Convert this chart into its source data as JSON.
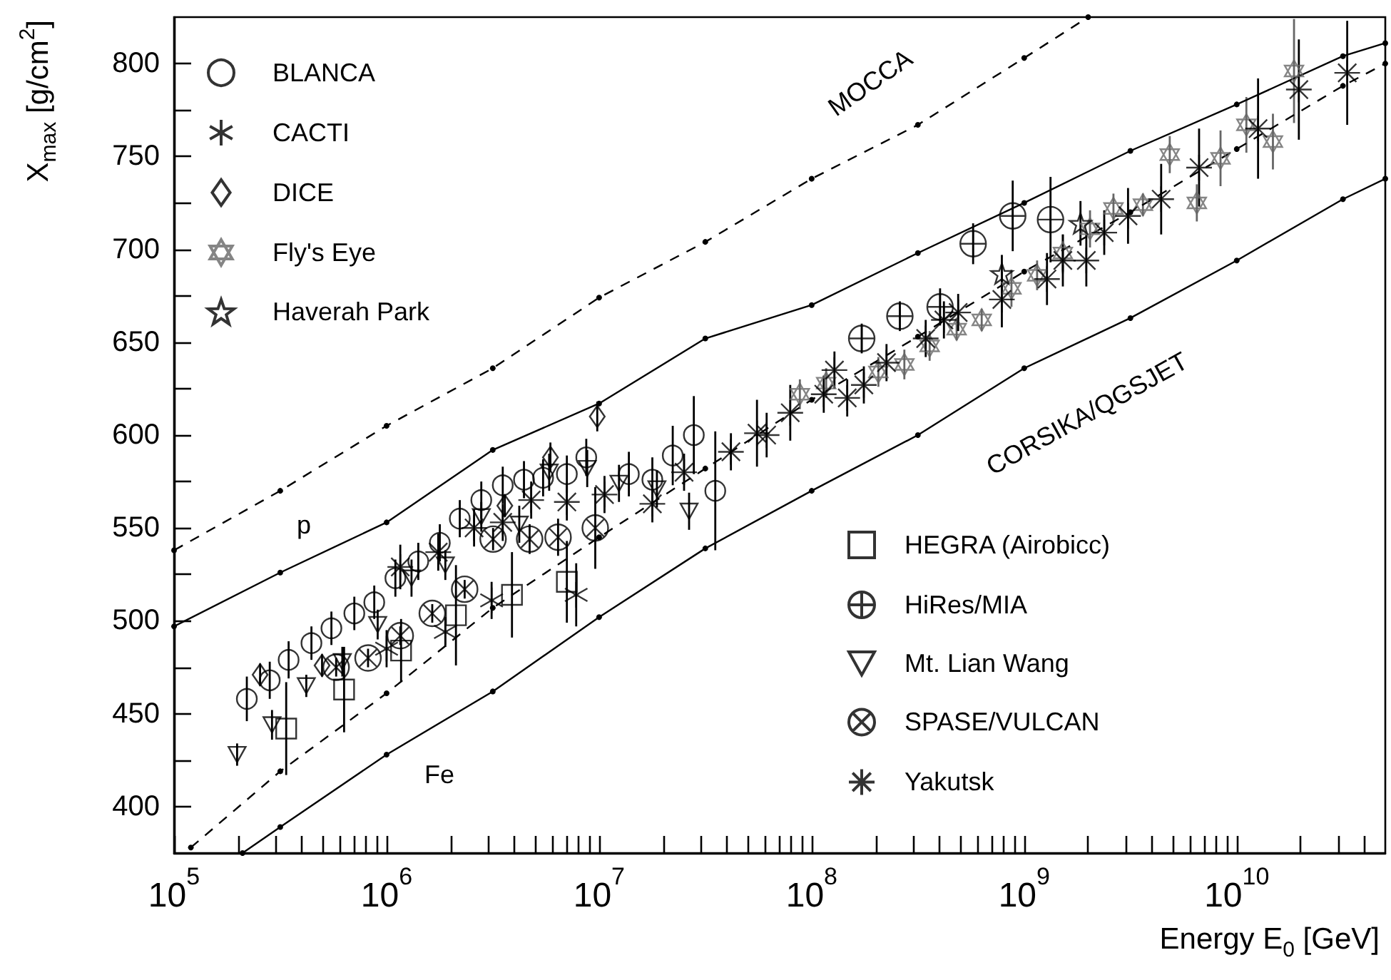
{
  "chart_data": {
    "type": "scatter",
    "xlabel": "Energy E$_{0}$ [GeV]",
    "ylabel": "X$_{max}$ [g/cm$^{2}$]",
    "log": "x",
    "grid": false,
    "legend": "top left",
    "xlim": [
      100000.0,
      50000000000.0
    ],
    "ylim": [
      375,
      825
    ],
    "xticks": [
      {
        "value": 100000.0,
        "label": "10$^{5}$"
      },
      {
        "value": 200000.0,
        "label": null
      },
      {
        "value": 300000.0,
        "label": null
      },
      {
        "value": 400000.0,
        "label": null
      },
      {
        "value": 500000.0,
        "label": null
      },
      {
        "value": 600000.0,
        "label": null
      },
      {
        "value": 700000.0,
        "label": null
      },
      {
        "value": 800000.0,
        "label": null
      },
      {
        "value": 900000.0,
        "label": null
      },
      {
        "value": 1000000.0,
        "label": "10$^{6}$"
      },
      {
        "value": 2000000.0,
        "label": null
      },
      {
        "value": 3000000.0,
        "label": null
      },
      {
        "value": 4000000.0,
        "label": null
      },
      {
        "value": 5000000.0,
        "label": null
      },
      {
        "value": 6000000.0,
        "label": null
      },
      {
        "value": 7000000.0,
        "label": null
      },
      {
        "value": 8000000.0,
        "label": null
      },
      {
        "value": 9000000.0,
        "label": null
      },
      {
        "value": 10000000.0,
        "label": "10$^{7}$"
      },
      {
        "value": 20000000.0,
        "label": null
      },
      {
        "value": 30000000.0,
        "label": null
      },
      {
        "value": 40000000.0,
        "label": null
      },
      {
        "value": 50000000.0,
        "label": null
      },
      {
        "value": 60000000.0,
        "label": null
      },
      {
        "value": 70000000.0,
        "label": null
      },
      {
        "value": 80000000.0,
        "label": null
      },
      {
        "value": 90000000.0,
        "label": null
      },
      {
        "value": 100000000.0,
        "label": "10$^{8}$"
      },
      {
        "value": 200000000.0,
        "label": null
      },
      {
        "value": 300000000.0,
        "label": null
      },
      {
        "value": 400000000.0,
        "label": null
      },
      {
        "value": 500000000.0,
        "label": null
      },
      {
        "value": 600000000.0,
        "label": null
      },
      {
        "value": 700000000.0,
        "label": null
      },
      {
        "value": 800000000.0,
        "label": null
      },
      {
        "value": 900000000.0,
        "label": null
      },
      {
        "value": 1000000000.0,
        "label": "10$^{9}$"
      },
      {
        "value": 2000000000.0,
        "label": null
      },
      {
        "value": 3000000000.0,
        "label": null
      },
      {
        "value": 4000000000.0,
        "label": null
      },
      {
        "value": 5000000000.0,
        "label": null
      },
      {
        "value": 6000000000.0,
        "label": null
      },
      {
        "value": 7000000000.0,
        "label": null
      },
      {
        "value": 8000000000.0,
        "label": null
      },
      {
        "value": 9000000000.0,
        "label": null
      },
      {
        "value": 10000000000.0,
        "label": "10$^{10}$"
      },
      {
        "value": 20000000000.0,
        "label": null
      },
      {
        "value": 30000000000.0,
        "label": null
      },
      {
        "value": 40000000000.0,
        "label": null
      }
    ],
    "yticks": [
      400,
      {
        "value": 425,
        "label": null
      },
      450,
      {
        "value": 475,
        "label": null
      },
      500,
      {
        "value": 525,
        "label": null
      },
      550,
      {
        "value": 575,
        "label": null
      },
      600,
      {
        "value": 625,
        "label": null
      },
      650,
      {
        "value": 675,
        "label": null
      },
      700,
      {
        "value": 725,
        "label": null
      },
      750,
      {
        "value": 775,
        "label": null
      },
      800
    ],
    "annotations": [
      "MOCCA",
      "CORSIKA/QGSJET",
      "p",
      "Fe"
    ],
    "series": [
      {
        "name": "BLANCA",
        "marker": "circle",
        "color": "#000000",
        "x": [
          220000.0,
          282000.0,
          346000.0,
          443000.0,
          550000.0,
          705000.0,
          875000.0,
          1100000.0,
          1410000.0,
          1780000.0,
          2210000.0,
          2790000.0,
          3520000.0,
          4430000.0,
          5450000.0,
          7050000.0,
          8700000.0,
          13800000.0,
          17800000.0,
          22200000.0,
          27900000.0,
          35200000.0
        ],
        "values": [
          458,
          468,
          479,
          488,
          496,
          504,
          510,
          523,
          532,
          542,
          555,
          565,
          573,
          576,
          577,
          579,
          588,
          579,
          576,
          589,
          600,
          570
        ],
        "errors": [
          12,
          10,
          10,
          9,
          9,
          9,
          9,
          10,
          10,
          10,
          10,
          10,
          10,
          10,
          10,
          10,
          10,
          12,
          12,
          16,
          21,
          32
        ]
      },
      {
        "name": "CACTI",
        "marker": "cross",
        "color": "#000000",
        "x": [
          1000000.0,
          1890000.0,
          3120000.0,
          7800000.0
        ],
        "values": [
          485,
          494,
          511,
          514
        ],
        "errors": [
          10,
          8,
          10,
          17
        ]
      },
      {
        "name": "DICE",
        "marker": "diamond",
        "color": "#000000",
        "x": [
          254000.0,
          497000.0,
          3600000.0,
          5900000.0,
          9800000.0
        ],
        "values": [
          471,
          476,
          562,
          588,
          610
        ],
        "errors": [
          6,
          6,
          6,
          8,
          8
        ]
      },
      {
        "name": "Fly's Eye",
        "marker": "star",
        "color": "#666666",
        "x": [
          88000000.0,
          117000000.0,
          206000000.0,
          273000000.0,
          359000000.0,
          481000000.0,
          631000000.0,
          871000000.0,
          1150000000.0,
          1520000000.0,
          2040000000.0,
          2630000000.0,
          3620000000.0,
          4840000000.0,
          6490000000.0,
          8390000000.0,
          11100000000.0,
          14800000000.0,
          18600000000.0
        ],
        "values": [
          622,
          628,
          634,
          638,
          648,
          657,
          662,
          679,
          686,
          698,
          711,
          722,
          724,
          751,
          725,
          749,
          767,
          758,
          796
        ],
        "errors": [
          8,
          8,
          8,
          8,
          8,
          6,
          6,
          10,
          8,
          10,
          10,
          8,
          6,
          10,
          10,
          15,
          15,
          15,
          28
        ]
      },
      {
        "name": "Haverah Park",
        "marker": "star",
        "color": "#000000",
        "x": [
          785000000.0,
          1840000000.0
        ],
        "values": [
          687,
          714
        ],
        "errors": [
          10,
          12
        ]
      },
      {
        "name": "HEGRA (Airobicc)",
        "marker": "square",
        "color": "#000000",
        "x": [
          337000.0,
          631000.0,
          1170000.0,
          2120000.0,
          3890000.0,
          7050000.0
        ],
        "values": [
          442,
          463,
          484,
          503,
          514,
          521
        ],
        "errors": [
          25,
          23,
          17,
          27,
          23,
          22
        ]
      },
      {
        "name": "HiRes/MIA",
        "marker": "cross",
        "color": "#000000",
        "x": [
          172000000.0,
          260000000.0,
          402000000.0,
          575000000.0,
          883000000.0,
          1330000000.0
        ],
        "values": [
          652,
          664,
          669,
          703,
          718,
          716
        ],
        "errors": [
          8,
          8,
          10,
          11,
          19,
          23
        ]
      },
      {
        "name": "Mt. Lian Wang",
        "marker": "triangle",
        "color": "#000000",
        "x": [
          198000.0,
          289000.0,
          419000.0,
          619000.0,
          908000.0,
          1310000.0,
          1890000.0,
          2790000.0,
          4210000.0,
          5820000.0,
          8790000.0,
          12400000.0,
          18700000.0,
          26500000.0
        ],
        "values": [
          428,
          444,
          465,
          478,
          498,
          523,
          530,
          556,
          552,
          580,
          582,
          574,
          571,
          559
        ],
        "errors": [
          6,
          8,
          6,
          8,
          8,
          10,
          8,
          8,
          10,
          10,
          10,
          10,
          10,
          10
        ]
      },
      {
        "name": "SPASE/VULCAN",
        "marker": "cross",
        "color": "#000000",
        "x": [
          579000.0,
          818000.0,
          1160000.0,
          1640000.0,
          2330000.0,
          3170000.0,
          4710000.0,
          6410000.0,
          9590000.0
        ],
        "values": [
          475,
          480,
          492,
          504,
          517,
          544,
          544,
          545,
          550
        ],
        "errors": [
          5,
          5,
          5,
          5,
          5,
          6,
          8,
          10,
          22
        ]
      },
      {
        "name": "Yakutsk",
        "marker": "cross",
        "color": "#000000",
        "x": [
          1160000.0,
          1750000.0,
          2580000.0,
          3520000.0,
          4790000.0,
          7050000.0,
          10600000.0,
          17800000.0,
          25100000.0,
          41700000.0,
          55300000.0,
          61400000.0,
          79300000.0,
          114000000.0,
          128000000.0,
          147000000.0,
          176000000.0,
          225000000.0,
          344000000.0,
          419000000.0,
          489000000.0,
          785000000.0,
          1280000000.0,
          1520000000.0,
          1960000000.0,
          2380000000.0,
          3080000000.0,
          4410000000.0,
          6650000000.0,
          12600000000.0,
          19600000000.0,
          33100000000.0
        ],
        "values": [
          529,
          537,
          550,
          553,
          565,
          564,
          568,
          563,
          580,
          591,
          601,
          600,
          612,
          622,
          635,
          620,
          627,
          639,
          652,
          662,
          666,
          673,
          684,
          694,
          694,
          709,
          718,
          727,
          744,
          765,
          786,
          795
        ],
        "errors": [
          12,
          10,
          10,
          10,
          10,
          10,
          10,
          10,
          10,
          10,
          18,
          12,
          15,
          10,
          10,
          10,
          10,
          10,
          10,
          10,
          10,
          15,
          14,
          14,
          14,
          12,
          15,
          19,
          21,
          27,
          27,
          28
        ]
      },
      {
        "type": "line",
        "marker": "circle",
        "line_style": "dashed",
        "color": "#000000",
        "x": [
          100000.0,
          316000.0,
          1000000.0,
          3160000.0,
          10000000.0,
          31600000.0,
          100000000.0,
          316000000.0,
          1000000000.0,
          2000000000.0
        ],
        "values": [
          538,
          570,
          605,
          636,
          674,
          704,
          738,
          767,
          803,
          825
        ]
      },
      {
        "type": "line",
        "marker": "circle",
        "line_style": "solid",
        "color": "#000000",
        "x": [
          100000.0,
          316000.0,
          1000000.0,
          3160000.0,
          10000000.0,
          31600000.0,
          100000000.0,
          316000000.0,
          1000000000.0,
          3160000000.0,
          10000000000.0,
          31600000000.0,
          50000000000.0
        ],
        "values": [
          497,
          526,
          553,
          592,
          617,
          652,
          670,
          698,
          725,
          753,
          778,
          804,
          811
        ]
      },
      {
        "type": "line",
        "marker": "circle",
        "line_style": "dashed",
        "color": "#000000",
        "x": [
          120000.0,
          316000.0,
          1000000.0,
          3160000.0,
          10000000.0,
          31600000.0,
          100000000.0,
          316000000.0,
          1000000000.0,
          3160000000.0,
          10000000000.0,
          31600000000.0,
          50000000000.0
        ],
        "values": [
          378,
          419,
          461,
          507,
          545,
          582,
          619,
          653,
          688,
          720,
          754,
          788,
          800
        ]
      },
      {
        "type": "line",
        "marker": "circle",
        "line_style": "solid",
        "color": "#000000",
        "x": [
          210000.0,
          316000.0,
          1000000.0,
          3160000.0,
          10000000.0,
          31600000.0,
          100000000.0,
          316000000.0,
          1000000000.0,
          3160000000.0,
          10000000000.0,
          31600000000.0,
          50000000000.0
        ],
        "values": [
          375,
          389,
          428,
          462,
          502,
          539,
          570,
          600,
          636,
          663,
          694,
          727,
          738
        ]
      }
    ]
  }
}
